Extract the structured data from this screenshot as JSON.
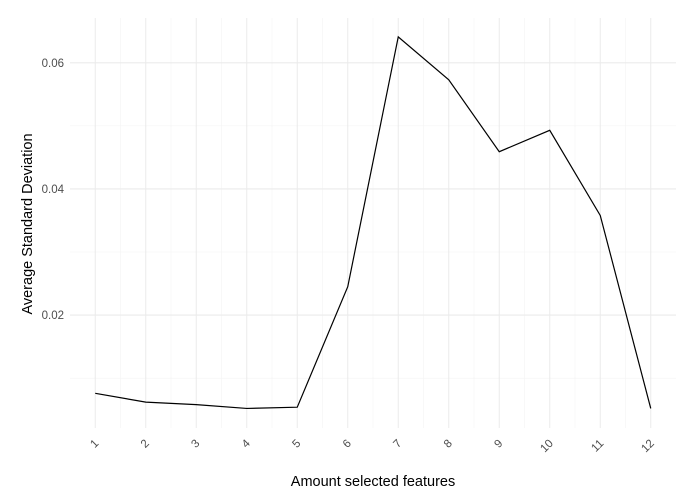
{
  "chart_data": {
    "type": "line",
    "title": "",
    "xlabel": "Amount selected features",
    "ylabel": "Average Standard Deviation",
    "x": [
      1,
      2,
      3,
      4,
      5,
      6,
      7,
      8,
      9,
      10,
      11,
      12
    ],
    "x_tick_labels": [
      "1",
      "2",
      "3",
      "4",
      "5",
      "6",
      "7",
      "8",
      "9",
      "10",
      "11",
      "12"
    ],
    "series": [
      {
        "values": [
          0.0076,
          0.0062,
          0.0058,
          0.0052,
          0.0054,
          0.0245,
          0.0641,
          0.0573,
          0.0459,
          0.0493,
          0.0358,
          0.0052
        ]
      }
    ],
    "y_ticks": [
      0.02,
      0.04,
      0.06
    ],
    "y_tick_labels": [
      "0.02",
      "0.04",
      "0.06"
    ],
    "xlim": [
      0.5,
      12.5
    ],
    "ylim": [
      0.0021,
      0.0671
    ],
    "grid": true,
    "legend": "none",
    "colors": {
      "line": "#000000",
      "grid_major": "#ebebeb",
      "grid_minor": "#f3f3f3",
      "background": "#ffffff"
    }
  }
}
